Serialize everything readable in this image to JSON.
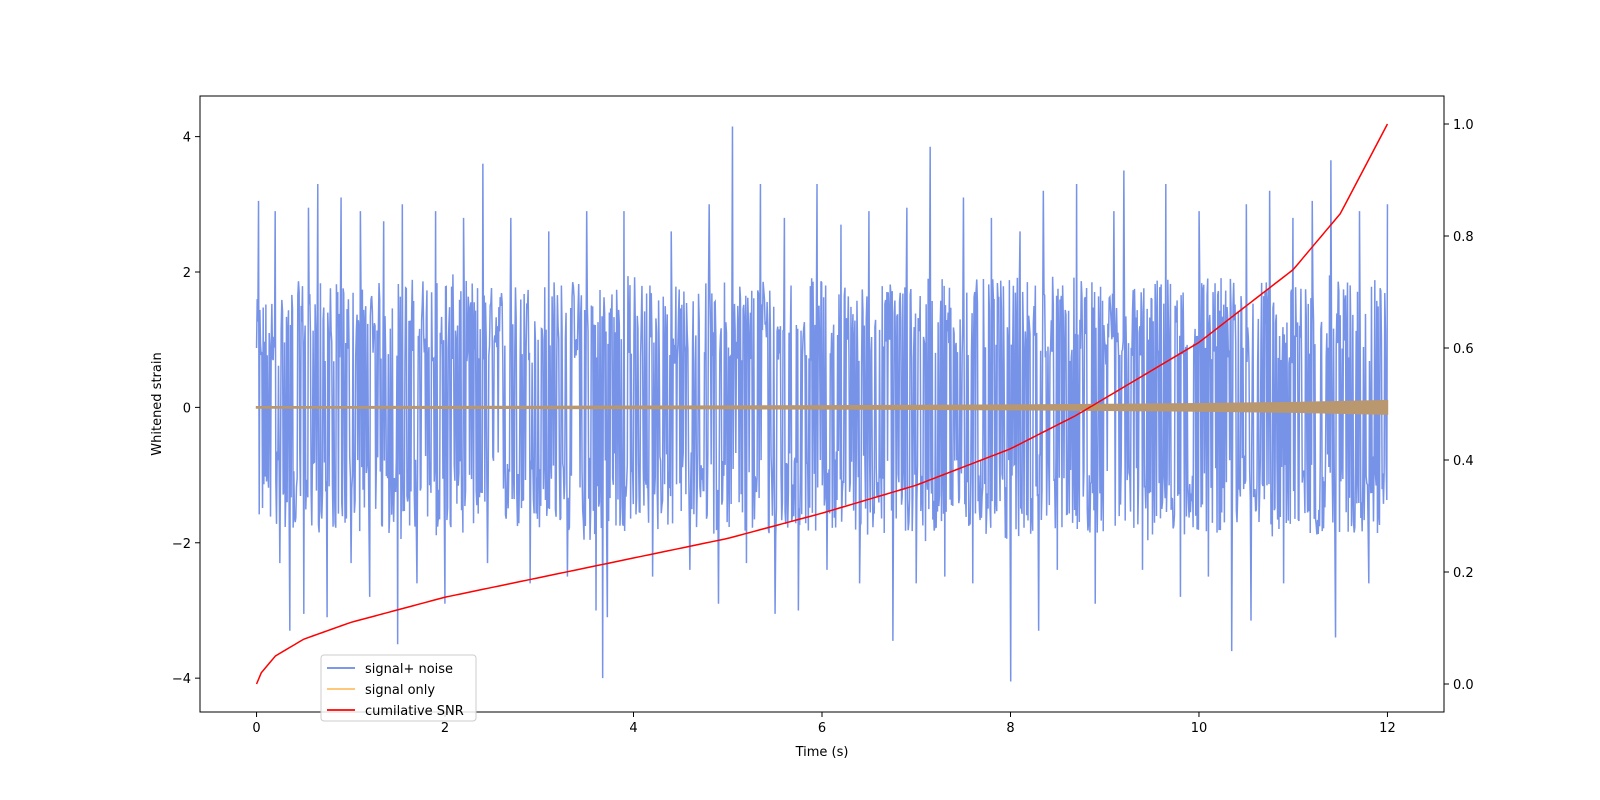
{
  "chart_data": {
    "type": "line",
    "title": "",
    "xlabel": "Time (s)",
    "ylabel": "Whitened strain",
    "y2label": "",
    "xlim": [
      -0.6,
      12.6
    ],
    "ylim": [
      -4.5,
      4.6
    ],
    "y2lim": [
      -0.05,
      1.05
    ],
    "xticks": [
      0,
      2,
      4,
      6,
      8,
      10,
      12
    ],
    "yticks": [
      -4,
      -2,
      0,
      2,
      4
    ],
    "y2ticks": [
      0.0,
      0.2,
      0.4,
      0.6,
      0.8,
      1.0
    ],
    "xtick_labels": [
      "0",
      "2",
      "4",
      "6",
      "8",
      "10",
      "12"
    ],
    "ytick_labels": [
      "−4",
      "−2",
      "0",
      "2",
      "4"
    ],
    "y2tick_labels": [
      "0.0",
      "0.2",
      "0.4",
      "0.6",
      "0.8",
      "1.0"
    ],
    "grid": false,
    "legend_position": "lower-left",
    "series": [
      {
        "name": "signal+ noise",
        "color": "#6b8ae6",
        "axis": "left",
        "kind": "band",
        "x": [
          0,
          0.5,
          1,
          1.5,
          2,
          2.5,
          3,
          3.5,
          4,
          4.5,
          5,
          5.5,
          6,
          6.5,
          7,
          7.5,
          8,
          8.5,
          9,
          9.5,
          10,
          10.5,
          11,
          11.5,
          12
        ],
        "min": [
          -1.7,
          -1.9,
          -1.8,
          -2.0,
          -1.9,
          -1.8,
          -1.9,
          -2.0,
          -1.9,
          -1.8,
          -1.9,
          -2.0,
          -1.8,
          -1.9,
          -2.0,
          -1.9,
          -2.0,
          -1.8,
          -1.9,
          -2.0,
          -1.9,
          -1.8,
          -2.0,
          -1.9,
          -1.9
        ],
        "max": [
          1.6,
          1.9,
          1.8,
          1.9,
          2.0,
          1.8,
          1.9,
          1.9,
          2.0,
          1.8,
          1.9,
          2.0,
          1.9,
          1.8,
          2.0,
          1.9,
          1.9,
          2.0,
          1.8,
          1.9,
          2.0,
          1.9,
          1.8,
          2.0,
          1.9
        ],
        "peaks": [
          [
            0.02,
            3.05
          ],
          [
            0.2,
            2.9
          ],
          [
            0.25,
            -2.3
          ],
          [
            0.35,
            -3.3
          ],
          [
            0.5,
            -3.05
          ],
          [
            0.55,
            2.95
          ],
          [
            0.65,
            3.3
          ],
          [
            0.75,
            -3.1
          ],
          [
            0.9,
            3.1
          ],
          [
            1.0,
            -2.3
          ],
          [
            1.1,
            2.9
          ],
          [
            1.2,
            -2.8
          ],
          [
            1.35,
            2.75
          ],
          [
            1.5,
            -3.5
          ],
          [
            1.55,
            3.0
          ],
          [
            1.7,
            -2.6
          ],
          [
            1.9,
            2.9
          ],
          [
            2.0,
            -2.9
          ],
          [
            2.2,
            2.8
          ],
          [
            2.4,
            3.6
          ],
          [
            2.45,
            -2.3
          ],
          [
            2.7,
            2.8
          ],
          [
            2.9,
            -2.6
          ],
          [
            3.1,
            2.6
          ],
          [
            3.3,
            -2.5
          ],
          [
            3.5,
            2.9
          ],
          [
            3.6,
            -3.0
          ],
          [
            3.67,
            -4.0
          ],
          [
            3.72,
            -3.1
          ],
          [
            3.9,
            2.9
          ],
          [
            4.2,
            -2.5
          ],
          [
            4.4,
            2.6
          ],
          [
            4.6,
            -2.4
          ],
          [
            4.8,
            3.0
          ],
          [
            4.9,
            -2.9
          ],
          [
            5.05,
            4.15
          ],
          [
            5.2,
            -2.3
          ],
          [
            5.35,
            3.3
          ],
          [
            5.5,
            -3.05
          ],
          [
            5.6,
            2.8
          ],
          [
            5.75,
            -3.0
          ],
          [
            5.95,
            3.3
          ],
          [
            6.05,
            -2.4
          ],
          [
            6.2,
            2.7
          ],
          [
            6.4,
            -2.6
          ],
          [
            6.5,
            2.9
          ],
          [
            6.75,
            -3.45
          ],
          [
            6.9,
            2.95
          ],
          [
            7.0,
            -2.6
          ],
          [
            7.15,
            3.85
          ],
          [
            7.3,
            -2.5
          ],
          [
            7.5,
            3.1
          ],
          [
            7.6,
            -2.6
          ],
          [
            7.8,
            2.8
          ],
          [
            8.0,
            -4.05
          ],
          [
            8.1,
            2.6
          ],
          [
            8.3,
            -3.3
          ],
          [
            8.35,
            3.2
          ],
          [
            8.5,
            -2.4
          ],
          [
            8.7,
            3.3
          ],
          [
            8.9,
            -2.9
          ],
          [
            9.1,
            2.9
          ],
          [
            9.2,
            3.5
          ],
          [
            9.4,
            -2.4
          ],
          [
            9.65,
            3.3
          ],
          [
            9.8,
            -2.8
          ],
          [
            10.0,
            2.9
          ],
          [
            10.1,
            -2.5
          ],
          [
            10.35,
            -3.6
          ],
          [
            10.5,
            3.0
          ],
          [
            10.55,
            -3.15
          ],
          [
            10.75,
            3.2
          ],
          [
            10.9,
            -2.6
          ],
          [
            11.0,
            2.8
          ],
          [
            11.2,
            3.05
          ],
          [
            11.4,
            3.65
          ],
          [
            11.45,
            -3.4
          ],
          [
            11.7,
            2.9
          ],
          [
            11.8,
            -2.6
          ],
          [
            12.0,
            3.0
          ]
        ],
        "linewidth": 1.5
      },
      {
        "name": "signal only",
        "color": "#ffbf66",
        "axis": "left",
        "kind": "envelope",
        "x": [
          0,
          1,
          2,
          3,
          4,
          5,
          6,
          7,
          8,
          9,
          10,
          11,
          12
        ],
        "amplitude": [
          0.01,
          0.01,
          0.012,
          0.014,
          0.016,
          0.019,
          0.022,
          0.027,
          0.033,
          0.042,
          0.054,
          0.07,
          0.1
        ],
        "fill_color": "#b9976f",
        "linewidth": 1.5
      },
      {
        "name": "cumilative SNR",
        "color": "#ff0000",
        "axis": "right",
        "kind": "line",
        "x": [
          0,
          0.05,
          0.2,
          0.5,
          1,
          2,
          3,
          4,
          5,
          6,
          7,
          8,
          8.7,
          9,
          10,
          11,
          11.5,
          12
        ],
        "y": [
          0.0,
          0.02,
          0.05,
          0.08,
          0.11,
          0.155,
          0.19,
          0.225,
          0.26,
          0.305,
          0.355,
          0.42,
          0.48,
          0.51,
          0.61,
          0.74,
          0.84,
          1.0
        ],
        "linewidth": 1.5
      }
    ]
  }
}
